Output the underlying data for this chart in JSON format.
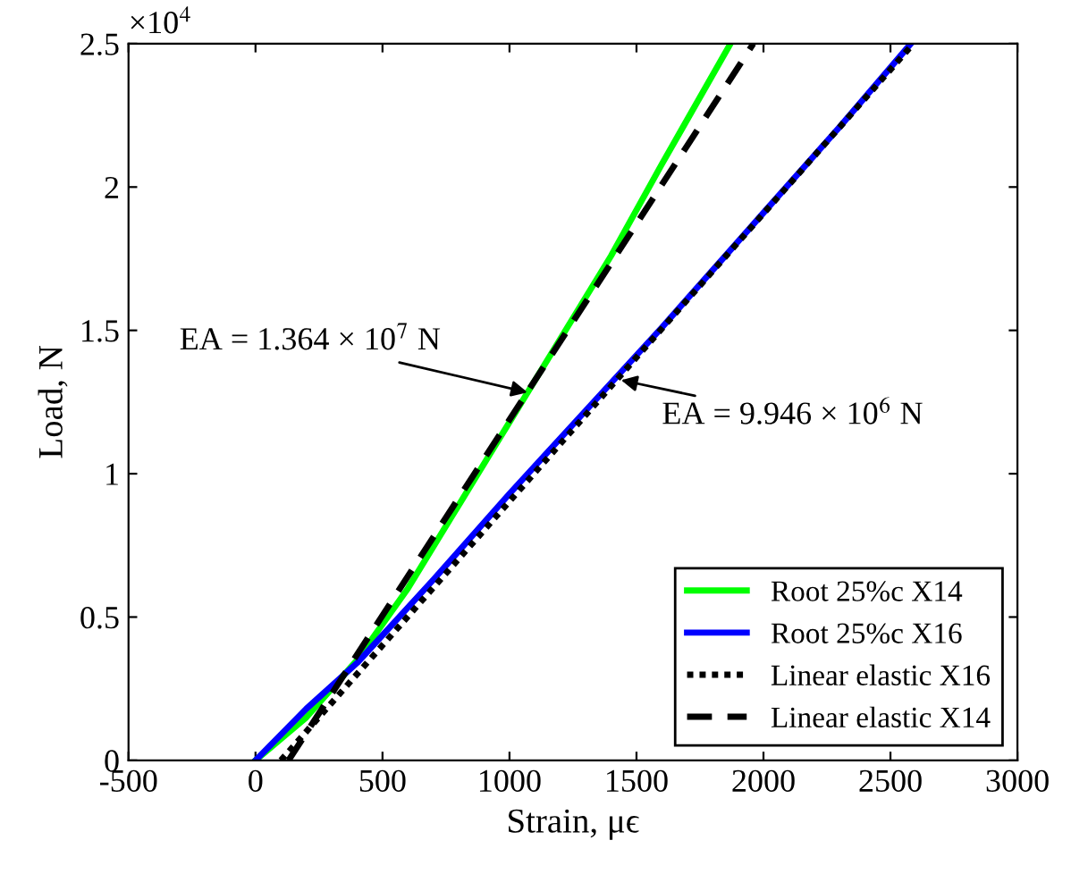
{
  "chart_data": {
    "type": "line",
    "xlabel": "Strain, μϵ",
    "ylabel": "Load, N",
    "xlim": [
      -500,
      3000
    ],
    "xticks": [
      -500,
      0,
      500,
      1000,
      1500,
      2000,
      2500,
      3000
    ],
    "ylim": [
      0,
      2.5
    ],
    "yticks": [
      0,
      0.5,
      1,
      1.5,
      2,
      2.5
    ],
    "series": [
      {
        "name": "Root 25%c X14",
        "color": "#00ff00",
        "line_style": "solid",
        "x": [
          0,
          200,
          400,
          600,
          800,
          1000,
          1200,
          1400,
          1600,
          1870
        ],
        "values": [
          0,
          0.15,
          0.35,
          0.6,
          0.89,
          1.18,
          1.47,
          1.76,
          2.08,
          2.5
        ]
      },
      {
        "name": "Root 25%c X16",
        "color": "#0000ff",
        "line_style": "solid",
        "x": [
          0,
          200,
          400,
          700,
          1000,
          1300,
          1600,
          2000,
          2300,
          2580
        ],
        "values": [
          0,
          0.18,
          0.34,
          0.63,
          0.93,
          1.22,
          1.51,
          1.91,
          2.21,
          2.5
        ]
      },
      {
        "name": "Linear elastic X16",
        "color": "#000000",
        "line_style": "dotted",
        "x": [
          100,
          2590
        ],
        "values": [
          0,
          2.5
        ]
      },
      {
        "name": "Linear elastic X14",
        "color": "#000000",
        "line_style": "dashed",
        "x": [
          130,
          1960
        ],
        "values": [
          0,
          2.5
        ]
      }
    ],
    "annotations": [
      "×10$^{4}$",
      {
        "text": "EA = 1.364 × 10$^{7}$ N",
        "x": 1090,
        "y": 1.28
      },
      {
        "text": "EA = 9.946 × 10$^{6}$ N",
        "x": 1420,
        "y": 1.33
      }
    ],
    "legend": "bottom right",
    "grid": false
  }
}
